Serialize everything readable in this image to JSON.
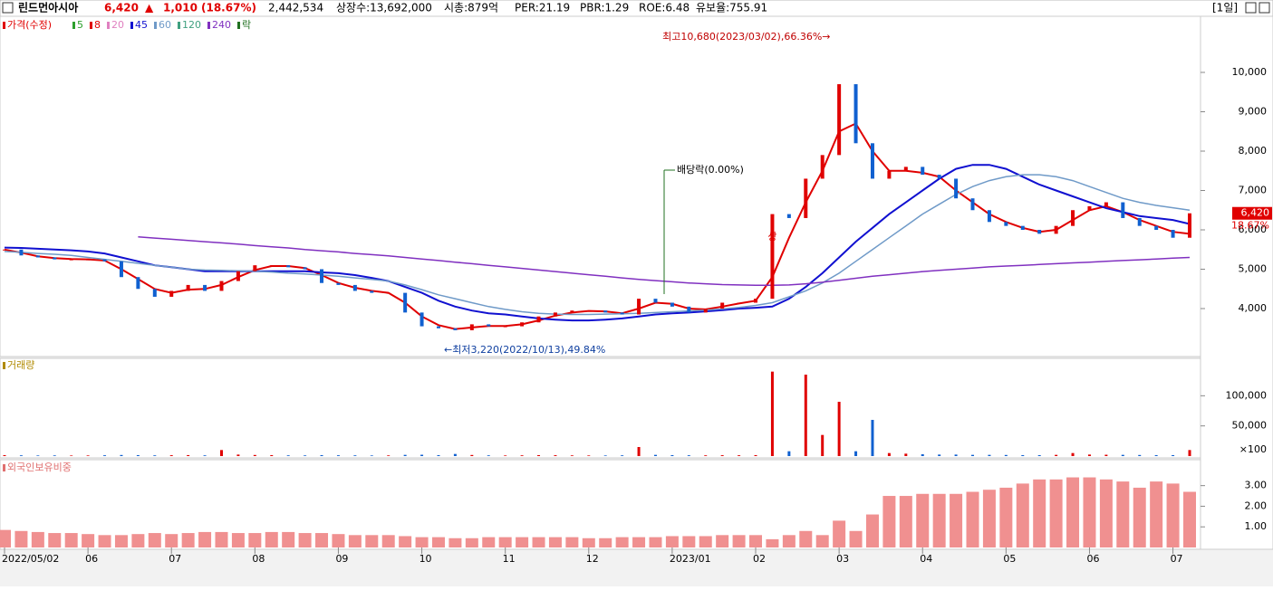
{
  "header": {
    "name": "린드먼아시아",
    "price": "6,420",
    "arrow": "▲",
    "change": "1,010",
    "change_pct": "(18.67%)",
    "volume": "2,442,534",
    "listed": "상장수:13,692,000",
    "cap": "시총:879억",
    "per": "PER:21.19",
    "pbr": "PBR:1.29",
    "roe": "ROE:6.48",
    "reserve": "유보율:755.91",
    "period": "[1일]"
  },
  "chart_data": [
    {
      "type": "candlestick",
      "legend_title": "가격(수정)",
      "legend_title_color": "#e00000",
      "categories": [
        "2022/05/02",
        null,
        null,
        null,
        null,
        "06",
        null,
        null,
        null,
        null,
        "07",
        null,
        null,
        null,
        null,
        "08",
        null,
        null,
        null,
        null,
        "09",
        null,
        null,
        null,
        null,
        "10",
        null,
        null,
        null,
        null,
        "11",
        null,
        null,
        null,
        null,
        "12",
        null,
        null,
        null,
        null,
        "2023/01",
        null,
        null,
        null,
        null,
        "02",
        null,
        null,
        null,
        null,
        "03",
        null,
        null,
        null,
        null,
        "04",
        null,
        null,
        null,
        null,
        "05",
        null,
        null,
        null,
        null,
        "06",
        null,
        null,
        null,
        null,
        "07",
        null
      ],
      "close": [
        5500,
        5350,
        5300,
        5250,
        5250,
        5250,
        5200,
        4800,
        4500,
        4300,
        4450,
        4600,
        4450,
        4700,
        4950,
        5100,
        5100,
        5050,
        5000,
        4650,
        4600,
        4450,
        4400,
        4400,
        3900,
        3550,
        3500,
        3450,
        3600,
        3550,
        3550,
        3650,
        3800,
        3900,
        3950,
        3950,
        3900,
        3850,
        4250,
        4150,
        4050,
        3900,
        4000,
        4150,
        4150,
        4250,
        6400,
        6300,
        7300,
        7900,
        9700,
        8200,
        7300,
        7500,
        7600,
        7400,
        7300,
        6800,
        6500,
        6200,
        6100,
        6000,
        5900,
        6100,
        6500,
        6600,
        6700,
        6300,
        6100,
        6000,
        5800,
        6420
      ],
      "up_color": "#e00000",
      "down_color": "#1060d0",
      "series": [
        {
          "name": "5",
          "color": "#2ca02c"
        },
        {
          "name": "8",
          "color": "#e00000",
          "values": [
            5500,
            5420,
            5330,
            5280,
            5260,
            5250,
            5220,
            5000,
            4750,
            4500,
            4400,
            4480,
            4500,
            4600,
            4800,
            4980,
            5080,
            5080,
            5030,
            4850,
            4650,
            4530,
            4450,
            4400,
            4150,
            3800,
            3580,
            3480,
            3520,
            3560,
            3560,
            3600,
            3700,
            3820,
            3900,
            3940,
            3930,
            3880,
            4000,
            4150,
            4120,
            4000,
            3980,
            4050,
            4130,
            4200,
            4800,
            5800,
            6700,
            7500,
            8500,
            8700,
            8000,
            7500,
            7500,
            7450,
            7350,
            7000,
            6700,
            6400,
            6200,
            6050,
            5950,
            6000,
            6250,
            6500,
            6600,
            6450,
            6250,
            6100,
            5950,
            5900
          ]
        },
        {
          "name": "20",
          "color": "#e080c0"
        },
        {
          "name": "45",
          "color": "#1010d0",
          "values": [
            5550,
            5540,
            5520,
            5500,
            5480,
            5450,
            5400,
            5300,
            5200,
            5100,
            5050,
            5000,
            4950,
            4950,
            4950,
            4950,
            4950,
            4950,
            4950,
            4920,
            4900,
            4850,
            4780,
            4700,
            4550,
            4400,
            4200,
            4050,
            3950,
            3880,
            3850,
            3800,
            3750,
            3720,
            3700,
            3700,
            3720,
            3750,
            3800,
            3850,
            3880,
            3900,
            3930,
            3960,
            4000,
            4020,
            4050,
            4250,
            4550,
            4900,
            5300,
            5700,
            6050,
            6400,
            6700,
            7000,
            7300,
            7550,
            7650,
            7650,
            7550,
            7350,
            7150,
            7000,
            6850,
            6700,
            6550,
            6450,
            6350,
            6300,
            6250,
            6150
          ]
        },
        {
          "name": "60",
          "color": "#6f9ac8",
          "values": [
            5450,
            5430,
            5400,
            5380,
            5350,
            5300,
            5250,
            5200,
            5150,
            5100,
            5050,
            5000,
            4980,
            4970,
            4960,
            4950,
            4930,
            4900,
            4880,
            4850,
            4820,
            4780,
            4740,
            4700,
            4600,
            4480,
            4350,
            4250,
            4150,
            4050,
            3980,
            3920,
            3880,
            3860,
            3850,
            3850,
            3860,
            3870,
            3880,
            3900,
            3920,
            3940,
            3960,
            3990,
            4030,
            4080,
            4150,
            4300,
            4450,
            4650,
            4900,
            5200,
            5500,
            5800,
            6100,
            6400,
            6650,
            6900,
            7100,
            7250,
            7350,
            7400,
            7400,
            7350,
            7250,
            7100,
            6950,
            6800,
            6700,
            6620,
            6560,
            6500
          ]
        },
        {
          "name": "120",
          "color": "#40a080"
        },
        {
          "name": "240",
          "color": "#8030c0",
          "values": [
            null,
            null,
            null,
            null,
            null,
            null,
            null,
            null,
            5820,
            5790,
            5760,
            5730,
            5700,
            5670,
            5640,
            5600,
            5570,
            5540,
            5500,
            5470,
            5440,
            5400,
            5370,
            5340,
            5300,
            5260,
            5220,
            5180,
            5140,
            5100,
            5060,
            5020,
            4980,
            4940,
            4900,
            4860,
            4820,
            4780,
            4740,
            4710,
            4680,
            4650,
            4630,
            4610,
            4600,
            4590,
            4590,
            4600,
            4630,
            4670,
            4720,
            4770,
            4820,
            4860,
            4900,
            4940,
            4970,
            5000,
            5030,
            5060,
            5080,
            5100,
            5120,
            5140,
            5160,
            5180,
            5200,
            5220,
            5240,
            5260,
            5280,
            5300
          ]
        },
        {
          "name": "락",
          "color": "#207020"
        }
      ],
      "ylim": [
        2805,
        11425
      ],
      "yticks": [
        {
          "value": 4000,
          "label": "4,000"
        },
        {
          "value": 5000,
          "label": "5,000"
        },
        {
          "value": 6000,
          "label": "6,000"
        },
        {
          "value": 7000,
          "label": "7,000"
        },
        {
          "value": 8000,
          "label": "8,000"
        },
        {
          "value": 9000,
          "label": "9,000"
        },
        {
          "value": 10000,
          "label": "10,000"
        }
      ],
      "annotations": {
        "high": "최고10,680(2023/03/02),66.36%→",
        "low": "←최저3,220(2022/10/13),49.84%",
        "dividend": "배당락(0.00%)",
        "limit": "상"
      },
      "last_label": "6,420",
      "last_pct": "18.67%"
    },
    {
      "type": "bar",
      "legend_title": "거래량",
      "legend_title_color": "#b08a00",
      "values": [
        1500,
        1200,
        1000,
        1100,
        900,
        1000,
        1300,
        1800,
        1500,
        1200,
        1400,
        1600,
        1200,
        10000,
        2500,
        1800,
        1500,
        1200,
        1100,
        1500,
        1300,
        1200,
        1000,
        1100,
        2000,
        2200,
        1500,
        3500,
        1800,
        1200,
        1000,
        1200,
        1500,
        1400,
        1100,
        1000,
        1000,
        1200,
        15000,
        2000,
        1500,
        1300,
        1200,
        1400,
        1300,
        1500,
        140000,
        8000,
        135000,
        35000,
        90000,
        8000,
        60000,
        5000,
        4000,
        3000,
        2500,
        2500,
        2000,
        2000,
        1800,
        1500,
        1500,
        2000,
        5000,
        2500,
        2200,
        2000,
        1800,
        1500,
        1500,
        10000
      ],
      "ylim": [
        0,
        159000
      ],
      "yticks": [
        {
          "value": 50000,
          "label": "50,000"
        },
        {
          "value": 100000,
          "label": "100,000"
        }
      ],
      "unit_label": "×100"
    },
    {
      "type": "bar",
      "legend_title": "외국인보유비중",
      "legend_title_color": "#e07070",
      "color": "#f09090",
      "values": [
        0.85,
        0.8,
        0.75,
        0.7,
        0.7,
        0.65,
        0.6,
        0.6,
        0.65,
        0.7,
        0.65,
        0.7,
        0.75,
        0.75,
        0.7,
        0.7,
        0.75,
        0.75,
        0.7,
        0.7,
        0.65,
        0.6,
        0.6,
        0.6,
        0.55,
        0.5,
        0.5,
        0.45,
        0.45,
        0.5,
        0.5,
        0.5,
        0.5,
        0.5,
        0.5,
        0.45,
        0.45,
        0.5,
        0.5,
        0.5,
        0.55,
        0.55,
        0.55,
        0.6,
        0.6,
        0.6,
        0.4,
        0.6,
        0.8,
        0.6,
        1.3,
        0.8,
        1.6,
        2.5,
        2.5,
        2.6,
        2.6,
        2.6,
        2.7,
        2.8,
        2.9,
        3.1,
        3.3,
        3.3,
        3.4,
        3.4,
        3.3,
        3.2,
        2.9,
        3.2,
        3.1,
        2.7
      ],
      "ylim": [
        0,
        4.17
      ],
      "yticks": [
        {
          "value": 1,
          "label": "1.00"
        },
        {
          "value": 2,
          "label": "2.00"
        },
        {
          "value": 3,
          "label": "3.00"
        }
      ]
    }
  ]
}
